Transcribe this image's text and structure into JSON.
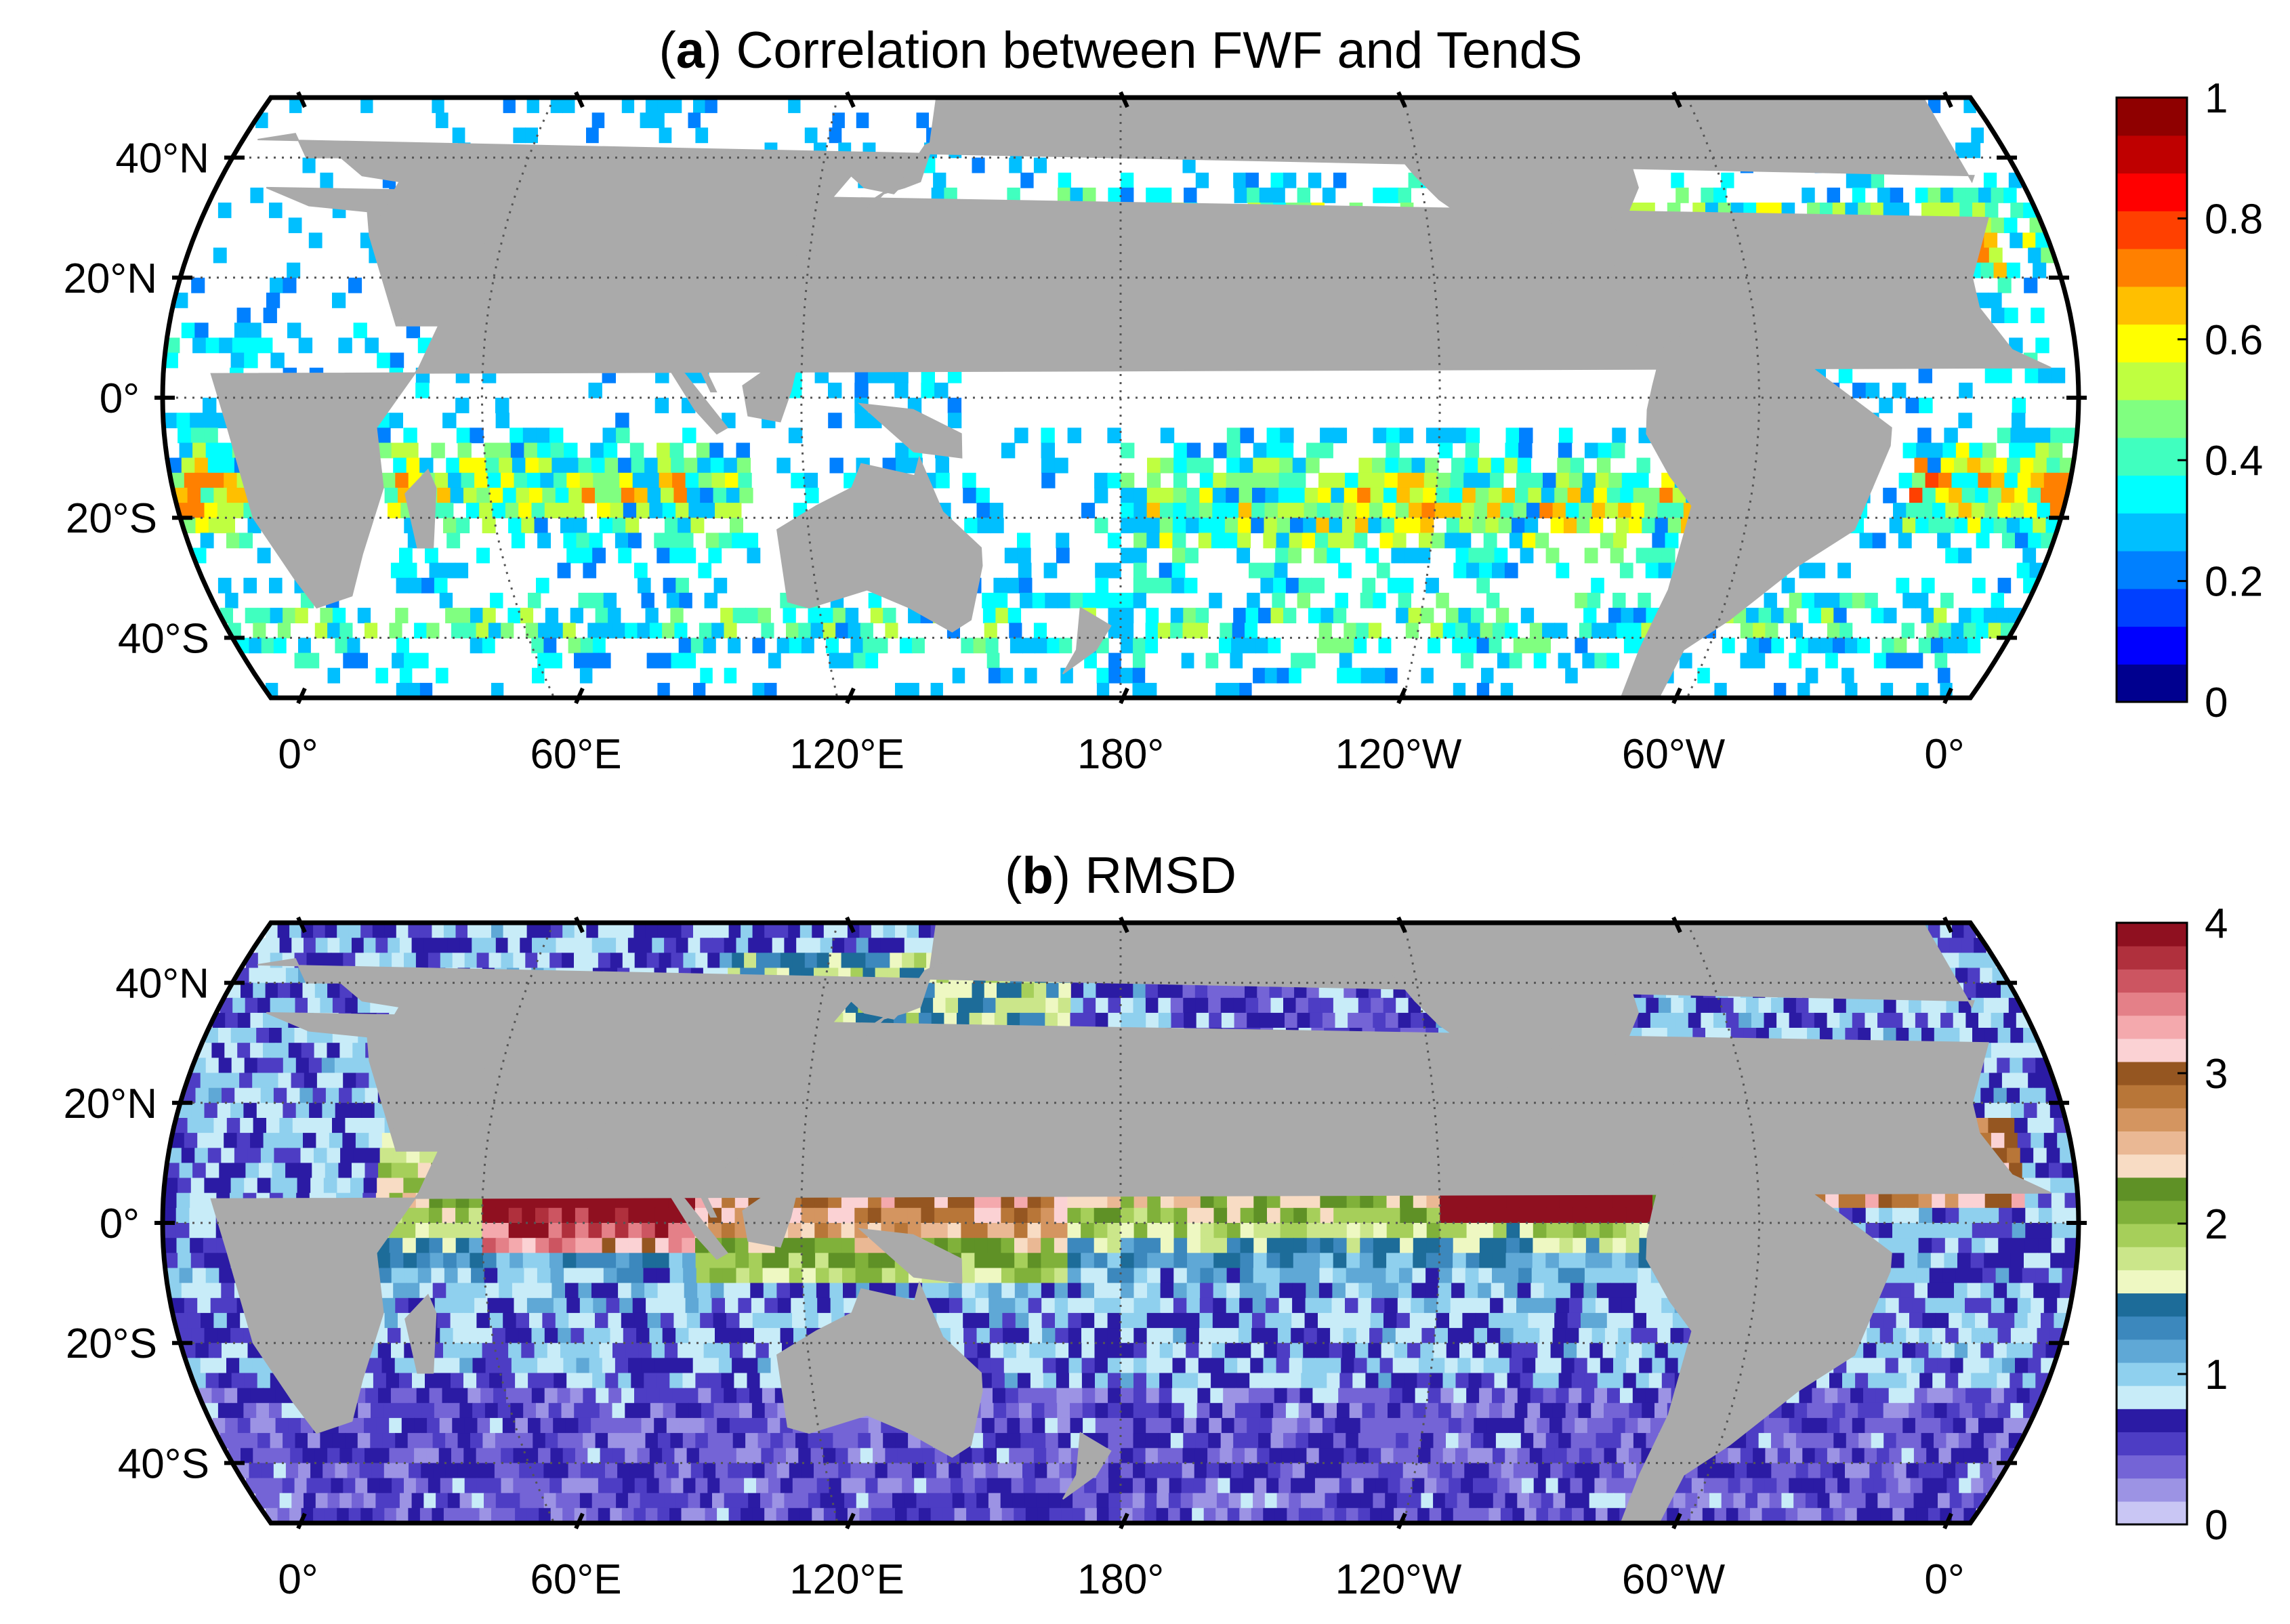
{
  "figure": {
    "colors": {
      "land": "#aaaaaa",
      "frame": "#000000",
      "grid": "#555555"
    },
    "panels": [
      {
        "id": "a",
        "title_letter": "a",
        "title_text": "Correlation between FWF and TendS",
        "lat_labels": [
          "40°N",
          "20°N",
          "0°",
          "20°S",
          "40°S"
        ],
        "lon_labels": [
          "0°",
          "60°E",
          "120°E",
          "180°",
          "120°W",
          "60°W",
          "0°"
        ],
        "colorbar": {
          "range": [
            0,
            1
          ],
          "tick_labels": [
            "1",
            "0.8",
            "0.6",
            "0.4",
            "0.2",
            "0"
          ],
          "colormap": "jet",
          "colors": [
            "#00008f",
            "#0000ff",
            "#0040ff",
            "#0080ff",
            "#00bfff",
            "#00ffff",
            "#40ffbf",
            "#80ff80",
            "#bfff40",
            "#ffff00",
            "#ffbf00",
            "#ff8000",
            "#ff4000",
            "#ff0000",
            "#bf0000",
            "#8f0000"
          ]
        }
      },
      {
        "id": "b",
        "title_letter": "b",
        "title_text": "RMSD",
        "lat_labels": [
          "40°N",
          "20°N",
          "0°",
          "20°S",
          "40°S"
        ],
        "lon_labels": [
          "0°",
          "60°E",
          "120°E",
          "180°",
          "120°W",
          "60°W",
          "0°"
        ],
        "colorbar": {
          "range": [
            0,
            4
          ],
          "tick_labels": [
            "4",
            "3",
            "2",
            "1",
            "0"
          ],
          "colormap": "discrete",
          "colors": [
            "#c9c6f4",
            "#9c93e4",
            "#7464d6",
            "#4d3dc4",
            "#2b1ba4",
            "#c8ecf8",
            "#8fd0ee",
            "#5fa8d6",
            "#3c88bd",
            "#1d6c99",
            "#eef8c2",
            "#cbe68a",
            "#a6cf5a",
            "#80b13a",
            "#5f9126",
            "#f8dcc4",
            "#eab894",
            "#d49560",
            "#b87638",
            "#955621",
            "#fbd2d4",
            "#f4a9ad",
            "#e48088",
            "#cc5561",
            "#b0303d",
            "#8f1020"
          ]
        }
      }
    ]
  }
}
